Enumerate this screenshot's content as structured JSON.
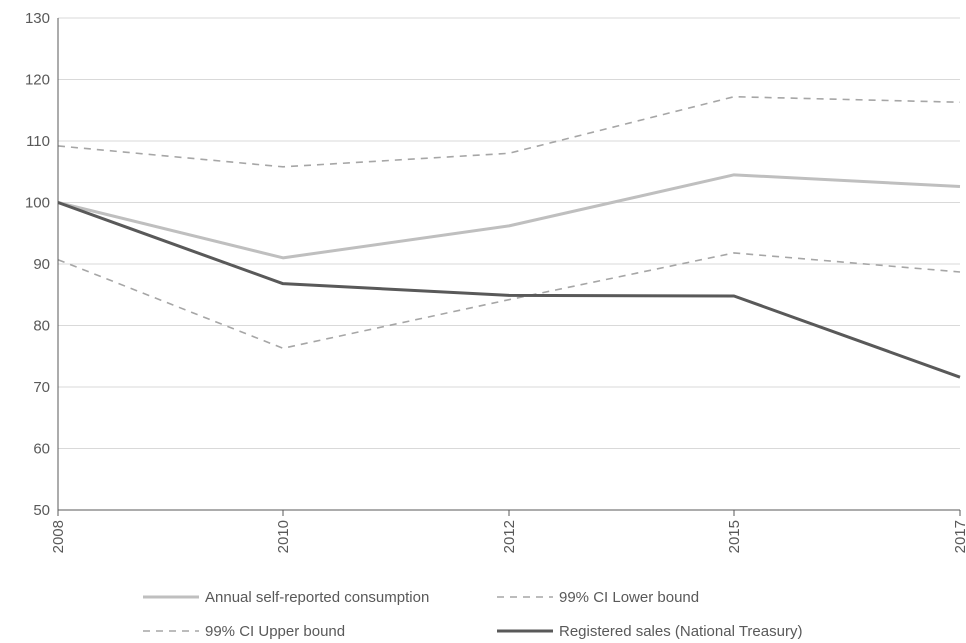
{
  "chart_data": {
    "type": "line",
    "title": "",
    "xlabel": "",
    "ylabel": "",
    "categories": [
      "2008",
      "2010",
      "2012",
      "2015",
      "2017"
    ],
    "ylim": [
      50,
      130
    ],
    "yticks": [
      50,
      60,
      70,
      80,
      90,
      100,
      110,
      120,
      130
    ],
    "grid": true,
    "legend_position": "bottom",
    "series": [
      {
        "name": "Annual self-reported  consumption",
        "values": [
          100,
          91,
          96.2,
          104.5,
          102.6
        ],
        "color": "#bfbfbf",
        "style": "solid",
        "width": 3
      },
      {
        "name": "99% CI Lower bound",
        "values": [
          90.7,
          76.3,
          84.2,
          91.8,
          88.7
        ],
        "color": "#a6a6a6",
        "style": "dashed",
        "width": 1.6
      },
      {
        "name": "99% CI Upper bound",
        "values": [
          109.2,
          105.8,
          108,
          117.2,
          116.3
        ],
        "color": "#a6a6a6",
        "style": "dashed",
        "width": 1.6
      },
      {
        "name": "Registered sales (National Treasury)",
        "values": [
          100,
          86.8,
          84.9,
          84.8,
          71.6
        ],
        "color": "#595959",
        "style": "solid",
        "width": 3
      }
    ]
  }
}
